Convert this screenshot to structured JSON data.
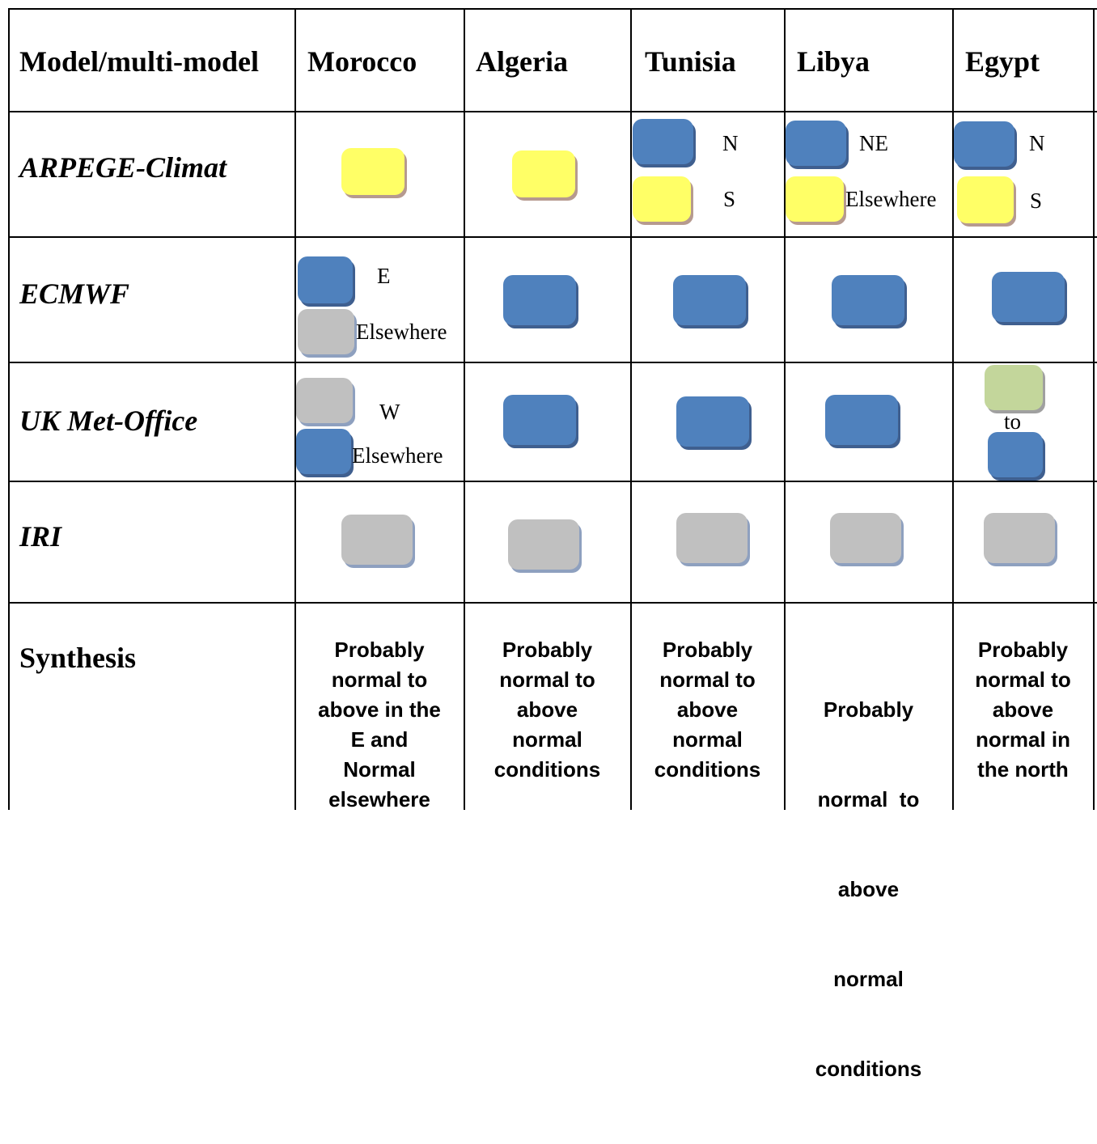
{
  "colors": {
    "blue": "#4f81bd",
    "yellow": "#ffff66",
    "grey": "#c0c0c0",
    "green": "#c3d69b"
  },
  "header": {
    "model": "Model/multi-model",
    "countries": [
      "Morocco",
      "Algeria",
      "Tunisia",
      "Libya",
      "Egypt"
    ]
  },
  "rows": {
    "arpege": {
      "label": "ARPEGE-Climat",
      "tunisia": {
        "top": "N",
        "bottom": "S"
      },
      "libya": {
        "top": "NE",
        "bottom": "Elsewhere"
      },
      "egypt": {
        "top": "N",
        "bottom": "S"
      }
    },
    "ecmwf": {
      "label": "ECMWF",
      "morocco": {
        "top": "E",
        "bottom": "Elsewhere"
      }
    },
    "ukmo": {
      "label": "UK Met-Office",
      "morocco": {
        "top": "W",
        "bottom": "Elsewhere"
      },
      "egypt": {
        "middle": "to"
      }
    },
    "iri": {
      "label": "IRI"
    }
  },
  "synthesis": {
    "label": "Synthesis",
    "morocco": [
      "Probably",
      "normal to",
      "above in the",
      "E and",
      "Normal",
      "elsewhere"
    ],
    "algeria": [
      "Probably",
      "normal to",
      "above",
      "normal",
      "conditions"
    ],
    "tunisia": [
      "Probably",
      "normal to",
      "above",
      "normal",
      "conditions"
    ],
    "libya": [
      "Probably",
      "normal  to",
      "above",
      "normal",
      "conditions"
    ],
    "egypt": [
      "Probably",
      "normal to",
      "above",
      "normal in",
      "the north"
    ]
  }
}
